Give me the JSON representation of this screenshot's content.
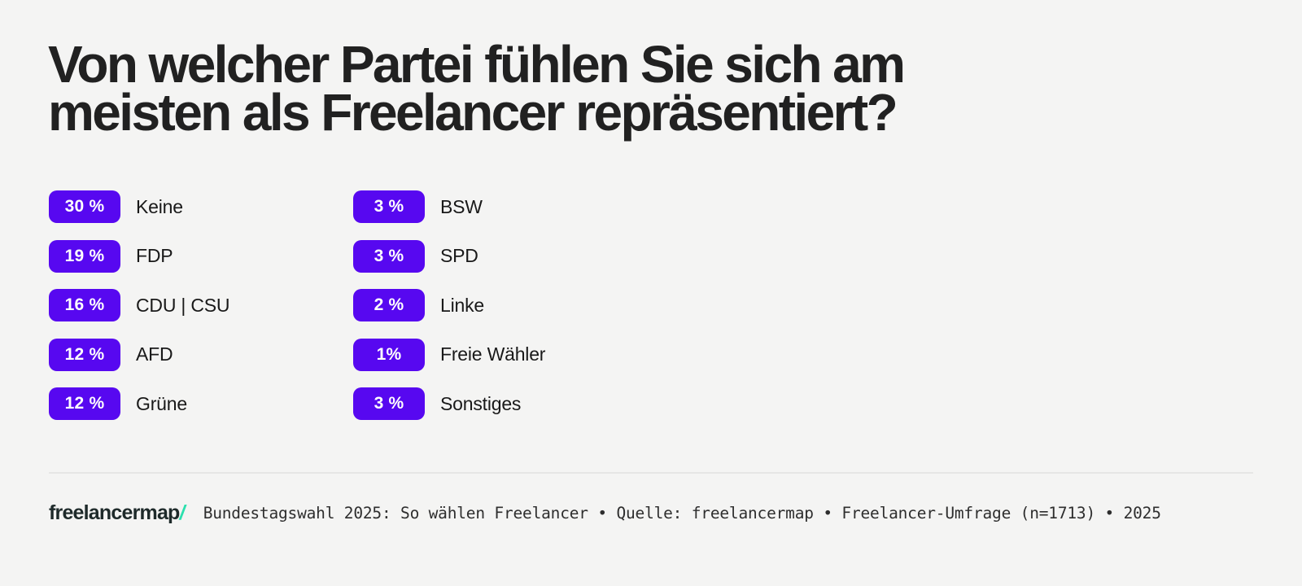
{
  "header": {
    "title_lines": [
      "Von welcher Partei fühlen Sie sich am",
      "meisten als Freelancer repräsentiert?"
    ],
    "title_full": "Von welcher Partei fühlen Sie sich am meisten als Freelancer repräsentiert?"
  },
  "results": {
    "columns": [
      {
        "items": [
          {
            "value": "30 %",
            "label": "Keine"
          },
          {
            "value": "19 %",
            "label": "FDP"
          },
          {
            "value": "16 %",
            "label": "CDU | CSU"
          },
          {
            "value": "12 %",
            "label": "AFD"
          },
          {
            "value": "12 %",
            "label": "Grüne"
          }
        ]
      },
      {
        "items": [
          {
            "value": "3 %",
            "label": "BSW"
          },
          {
            "value": "3 %",
            "label": "SPD"
          },
          {
            "value": "2 %",
            "label": "Linke"
          },
          {
            "value": "1%",
            "label": "Freie Wähler"
          },
          {
            "value": "3 %",
            "label": "Sonstiges"
          }
        ]
      }
    ]
  },
  "footer": {
    "logo_text": "freelancermap",
    "logo_slash": "/",
    "caption": "Bundestagswahl 2025: So wählen Freelancer • Quelle: freelancermap • Freelancer-Umfrage (n=1713) • 2025"
  },
  "colors": {
    "background": "#f4f4f3",
    "badge": "#5708f0",
    "badge_text": "#ffffff",
    "title_text": "#212121",
    "label_text": "#191919",
    "caption_text": "#2e2e2e",
    "logo_text": "#1e2a2a",
    "logo_slash": "#2be0ae",
    "divider": "#e6e6e5"
  },
  "chart_data": {
    "type": "bar",
    "title": "Von welcher Partei fühlen Sie sich am meisten als Freelancer repräsentiert?",
    "categories": [
      "Keine",
      "FDP",
      "CDU | CSU",
      "AFD",
      "Grüne",
      "BSW",
      "SPD",
      "Linke",
      "Freie Wähler",
      "Sonstiges"
    ],
    "values": [
      30,
      19,
      16,
      12,
      12,
      3,
      3,
      2,
      1,
      3
    ],
    "value_labels": [
      "30 %",
      "19 %",
      "16 %",
      "12 %",
      "12 %",
      "3 %",
      "3 %",
      "2 %",
      "1%",
      "3 %"
    ],
    "unit": "%",
    "layout": "two-column badge list, values as rounded violet badges with party labels",
    "legend": "none",
    "source": "Bundestagswahl 2025: So wählen Freelancer • Quelle: freelancermap • Freelancer-Umfrage (n=1713) • 2025"
  }
}
